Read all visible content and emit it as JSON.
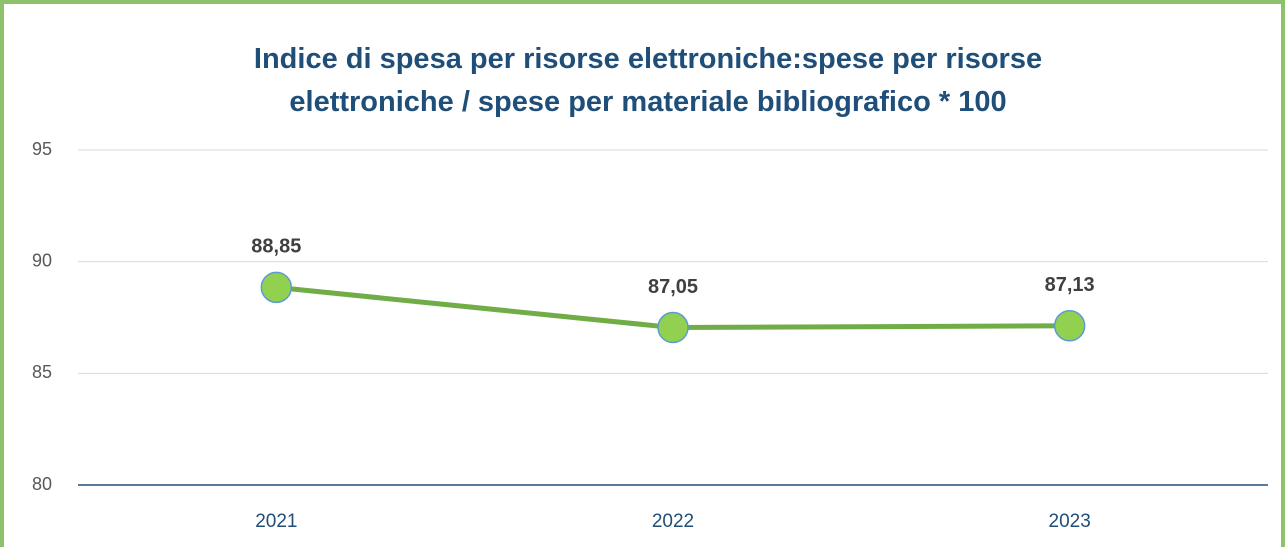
{
  "chart_data": {
    "type": "line",
    "title": "Indice di spesa per risorse elettroniche:spese per risorse elettroniche / spese per materiale bibliografico * 100",
    "categories": [
      "2021",
      "2022",
      "2023"
    ],
    "series": [
      {
        "color": "#70ad47",
        "marker_color": "#92d050",
        "values": [
          88.85,
          87.05,
          87.13
        ],
        "value_labels": [
          "88,85",
          "87,05",
          "87,13"
        ]
      }
    ],
    "ylim": [
      80,
      95
    ],
    "yticks": [
      80,
      85,
      90,
      95
    ],
    "grid": true
  }
}
